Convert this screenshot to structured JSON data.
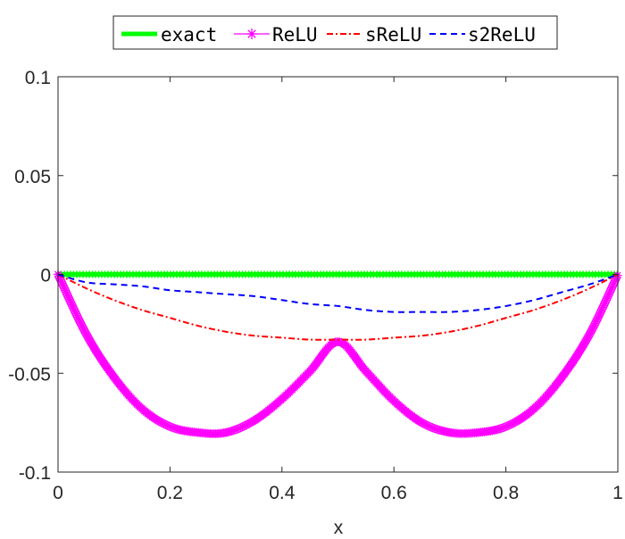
{
  "chart_data": {
    "type": "line",
    "xlabel": "x",
    "ylabel": "",
    "xlim": [
      0,
      1
    ],
    "ylim": [
      -0.1,
      0.1
    ],
    "xticks": [
      0,
      0.2,
      0.4,
      0.6,
      0.8,
      1
    ],
    "xtick_labels": [
      "0",
      "0.2",
      "0.4",
      "0.6",
      "0.8",
      "1"
    ],
    "yticks": [
      -0.1,
      -0.05,
      0,
      0.05,
      0.1
    ],
    "ytick_labels": [
      "-0.1",
      "-0.05",
      "0",
      "0.05",
      "0.1"
    ],
    "grid": false,
    "legend_position": "top-center, outside plot",
    "x": [
      0,
      0.05,
      0.1,
      0.15,
      0.2,
      0.25,
      0.3,
      0.35,
      0.4,
      0.45,
      0.5,
      0.55,
      0.6,
      0.65,
      0.7,
      0.75,
      0.8,
      0.85,
      0.9,
      0.95,
      1
    ],
    "series": [
      {
        "name": "exact",
        "color": "#00ff00",
        "style": "solid-thick",
        "values": [
          0,
          0,
          0,
          0,
          0,
          0,
          0,
          0,
          0,
          0,
          0,
          0,
          0,
          0,
          0,
          0,
          0,
          0,
          0,
          0,
          0
        ]
      },
      {
        "name": "ReLU",
        "color": "#ff00ff",
        "style": "solid-star",
        "values": [
          0,
          -0.03,
          -0.052,
          -0.068,
          -0.077,
          -0.08,
          -0.08,
          -0.074,
          -0.063,
          -0.049,
          -0.034,
          -0.049,
          -0.064,
          -0.075,
          -0.08,
          -0.08,
          -0.077,
          -0.068,
          -0.052,
          -0.03,
          0
        ]
      },
      {
        "name": "sReLU",
        "color": "#ff0000",
        "style": "dash-dot",
        "values": [
          0,
          -0.007,
          -0.013,
          -0.018,
          -0.022,
          -0.026,
          -0.029,
          -0.031,
          -0.032,
          -0.033,
          -0.033,
          -0.033,
          -0.032,
          -0.031,
          -0.029,
          -0.026,
          -0.022,
          -0.018,
          -0.013,
          -0.007,
          0
        ]
      },
      {
        "name": "s2ReLU",
        "color": "#0000ff",
        "style": "dashed",
        "values": [
          0,
          -0.004,
          -0.005,
          -0.006,
          -0.008,
          -0.009,
          -0.01,
          -0.011,
          -0.013,
          -0.015,
          -0.016,
          -0.018,
          -0.019,
          -0.019,
          -0.019,
          -0.018,
          -0.016,
          -0.013,
          -0.009,
          -0.005,
          0
        ]
      }
    ]
  }
}
